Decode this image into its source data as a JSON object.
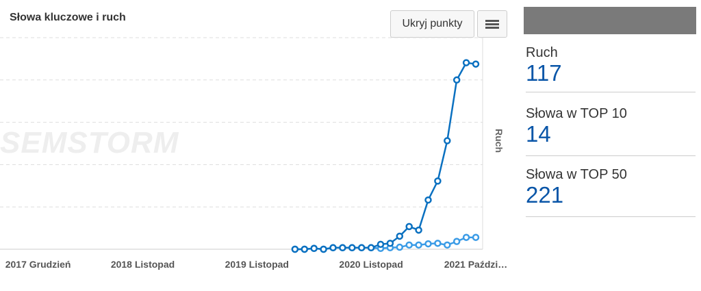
{
  "header": {
    "title": "Słowa kluczowe i ruch",
    "hide_points_label": "Ukryj punkty",
    "menu_icon": "hamburger-icon"
  },
  "watermark": "SEMSTORM",
  "stats": [
    {
      "label": "Ruch",
      "value": "117"
    },
    {
      "label": "Słowa w TOP 10",
      "value": "14"
    },
    {
      "label": "Słowa w TOP 50",
      "value": "221"
    }
  ],
  "colors": {
    "series_dark": "#0a70c0",
    "series_light": "#3a9be6",
    "stat_value": "#0a56a8"
  },
  "chart_data": {
    "type": "line",
    "title": "Słowa kluczowe i ruch",
    "ylabel_right": "Ruch",
    "x_start": "2017-08",
    "x_end": "2021-10",
    "ylim": [
      0,
      125
    ],
    "grid": true,
    "x_tick_labels": [
      {
        "month": "2017-12",
        "label": "2017 Grudzień"
      },
      {
        "month": "2018-11",
        "label": "2018 Listopad"
      },
      {
        "month": "2019-11",
        "label": "2019 Listopad"
      },
      {
        "month": "2020-11",
        "label": "2020 Listopad"
      },
      {
        "month": "2021-10",
        "label": "2021 Paździ…"
      }
    ],
    "x": [
      "2020-03",
      "2020-04",
      "2020-05",
      "2020-06",
      "2020-07",
      "2020-08",
      "2020-09",
      "2020-10",
      "2020-11",
      "2020-12",
      "2021-01",
      "2021-02",
      "2021-03",
      "2021-04",
      "2021-05",
      "2021-06",
      "2021-07",
      "2021-08",
      "2021-09",
      "2021-10"
    ],
    "series": [
      {
        "name": "Ruch",
        "values": [
          0,
          0,
          0.5,
          0,
          0.9,
          0.9,
          0.9,
          0.9,
          0.9,
          2.9,
          3.5,
          7.7,
          13.4,
          11.3,
          29.1,
          40.3,
          64.1,
          100,
          110.2,
          109.4
        ]
      },
      {
        "name": "Słowa",
        "values": [
          0,
          0,
          0.5,
          0,
          0.9,
          0.9,
          0.9,
          0.9,
          0.9,
          0.5,
          0.9,
          1.2,
          2.5,
          2.5,
          3.2,
          3.5,
          2.5,
          4.6,
          7,
          7
        ]
      }
    ]
  }
}
